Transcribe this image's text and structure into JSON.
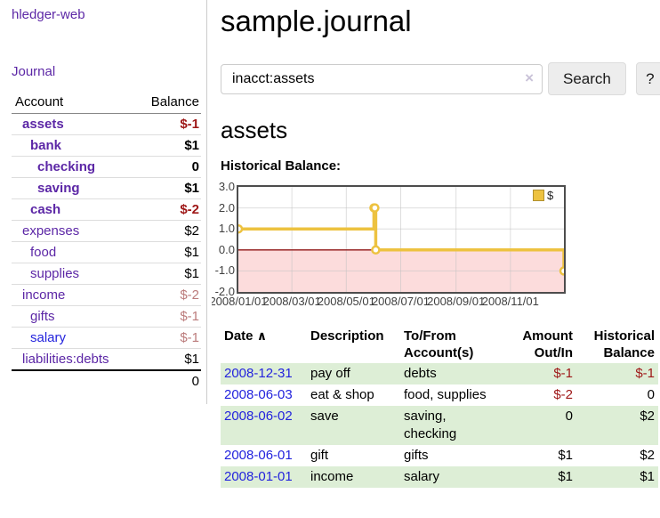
{
  "app": {
    "title": "hledger-web"
  },
  "colors": {
    "link_purple": "#5c27a6",
    "link_blue": "#2323dd",
    "negative_red": "#9e1717",
    "muted_negative": "#bb7b7b",
    "row_green": "#ddeed6",
    "chart_line": "#EDC240"
  },
  "sidebar": {
    "nav": {
      "journal_label": "Journal"
    },
    "table": {
      "account_header": "Account",
      "balance_header": "Balance",
      "rows": [
        {
          "account": "assets",
          "balance": "$-1",
          "acct_class": "d1 b purple",
          "bal_class": "b neg"
        },
        {
          "account": "bank",
          "balance": "$1",
          "acct_class": "d2 b purple",
          "bal_class": "b"
        },
        {
          "account": "checking",
          "balance": "0",
          "acct_class": "d3 b purple",
          "bal_class": "b"
        },
        {
          "account": "saving",
          "balance": "$1",
          "acct_class": "d3 b purple",
          "bal_class": "b"
        },
        {
          "account": "cash",
          "balance": "$-2",
          "acct_class": "d2 b purple",
          "bal_class": "b neg"
        },
        {
          "account": "expenses",
          "balance": "$2",
          "acct_class": "d1 purple",
          "bal_class": ""
        },
        {
          "account": "food",
          "balance": "$1",
          "acct_class": "d2 purple",
          "bal_class": ""
        },
        {
          "account": "supplies",
          "balance": "$1",
          "acct_class": "d2 purple",
          "bal_class": ""
        },
        {
          "account": "income",
          "balance": "$-2",
          "acct_class": "d1 purple",
          "bal_class": "negm"
        },
        {
          "account": "gifts",
          "balance": "$-1",
          "acct_class": "d2 purple",
          "bal_class": "negm"
        },
        {
          "account": "salary",
          "balance": "$-1",
          "acct_class": "d2 blue",
          "bal_class": "negm"
        },
        {
          "account": "liabilities:debts",
          "balance": "$1",
          "acct_class": "d1 purple",
          "bal_class": ""
        }
      ],
      "total": "0"
    }
  },
  "main": {
    "title": "sample.journal",
    "search": {
      "value": "inacct:assets",
      "clear_icon": "×",
      "button_label": "Search",
      "help_label": "?"
    },
    "section_title": "assets",
    "chart_label": "Historical Balance:"
  },
  "chart_data": {
    "type": "line",
    "step": true,
    "title": "Historical Balance",
    "series": [
      {
        "name": "$",
        "points": [
          {
            "x": "2008-01-01",
            "y": 1
          },
          {
            "x": "2008-06-01",
            "y": 2
          },
          {
            "x": "2008-06-02",
            "y": 2
          },
          {
            "x": "2008-06-03",
            "y": 0
          },
          {
            "x": "2008-12-31",
            "y": -1
          }
        ]
      }
    ],
    "xlim": [
      "2008-01-01",
      "2008-12-31"
    ],
    "ylim": [
      -2,
      3
    ],
    "x_ticks": [
      {
        "value": "2008-01-01",
        "label": "2008/01/01"
      },
      {
        "value": "2008-03-01",
        "label": "2008/03/01"
      },
      {
        "value": "2008-05-01",
        "label": "2008/05/01"
      },
      {
        "value": "2008-07-01",
        "label": "2008/07/01"
      },
      {
        "value": "2008-09-01",
        "label": "2008/09/01"
      },
      {
        "value": "2008-11-01",
        "label": "2008/11/01"
      }
    ],
    "y_ticks": [
      3.0,
      2.0,
      1.0,
      0.0,
      -1.0,
      -2.0
    ],
    "grid": true,
    "legend": {
      "label": "$",
      "position": "top-right"
    },
    "line_color": "#EDC240",
    "marker_fill": "#ffffff",
    "negative_region_fill": "#fcdcdc",
    "zero_line_color": "#8f1414",
    "grid_color": "#c2c2c2"
  },
  "register": {
    "headers": {
      "date": "Date",
      "sort_icon": "∧",
      "description": "Description",
      "accounts": "To/From Account(s)",
      "amount": "Amount Out/In",
      "balance": "Historical Balance"
    },
    "rows": [
      {
        "date": "2008-12-31",
        "description": "pay off",
        "accounts": "debts",
        "amount": "$-1",
        "balance": "$-1",
        "amount_class": "neg",
        "balance_class": "neg"
      },
      {
        "date": "2008-06-03",
        "description": "eat & shop",
        "accounts": "food, supplies",
        "amount": "$-2",
        "balance": "0",
        "amount_class": "neg",
        "balance_class": ""
      },
      {
        "date": "2008-06-02",
        "description": "save",
        "accounts": "saving, checking",
        "amount": "0",
        "balance": "$2",
        "amount_class": "",
        "balance_class": ""
      },
      {
        "date": "2008-06-01",
        "description": "gift",
        "accounts": "gifts",
        "amount": "$1",
        "balance": "$2",
        "amount_class": "",
        "balance_class": ""
      },
      {
        "date": "2008-01-01",
        "description": "income",
        "accounts": "salary",
        "amount": "$1",
        "balance": "$1",
        "amount_class": "",
        "balance_class": ""
      }
    ]
  }
}
